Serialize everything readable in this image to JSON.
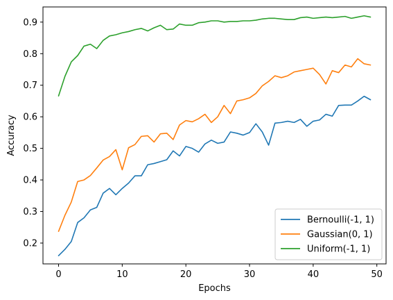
{
  "chart_data": {
    "type": "line",
    "title": "",
    "xlabel": "Epochs",
    "ylabel": "Accuracy",
    "xlim": [
      -2.45,
      51.45
    ],
    "ylim": [
      0.134,
      0.948
    ],
    "xticks": [
      0,
      10,
      20,
      30,
      40,
      50
    ],
    "yticks": [
      0.2,
      0.3,
      0.4,
      0.5,
      0.6,
      0.7,
      0.8,
      0.9
    ],
    "xtick_labels": [
      "0",
      "10",
      "20",
      "30",
      "40",
      "50"
    ],
    "ytick_labels": [
      "0.2",
      "0.3",
      "0.4",
      "0.5",
      "0.6",
      "0.7",
      "0.8",
      "0.9"
    ],
    "grid": false,
    "legend_position": "lower-right",
    "x": [
      0,
      1,
      2,
      3,
      4,
      5,
      6,
      7,
      8,
      9,
      10,
      11,
      12,
      13,
      14,
      15,
      16,
      17,
      18,
      19,
      20,
      21,
      22,
      23,
      24,
      25,
      26,
      27,
      28,
      29,
      30,
      31,
      32,
      33,
      34,
      35,
      36,
      37,
      38,
      39,
      40,
      41,
      42,
      43,
      44,
      45,
      46,
      47,
      48,
      49
    ],
    "series": [
      {
        "name": "Bernoulli(-1, 1)",
        "color": "#1f77b4",
        "values": [
          0.16,
          0.18,
          0.205,
          0.265,
          0.28,
          0.305,
          0.313,
          0.358,
          0.373,
          0.353,
          0.373,
          0.39,
          0.413,
          0.413,
          0.448,
          0.452,
          0.458,
          0.464,
          0.492,
          0.476,
          0.506,
          0.5,
          0.488,
          0.514,
          0.526,
          0.516,
          0.52,
          0.552,
          0.548,
          0.542,
          0.55,
          0.578,
          0.552,
          0.51,
          0.58,
          0.582,
          0.586,
          0.582,
          0.592,
          0.57,
          0.586,
          0.59,
          0.608,
          0.602,
          0.636,
          0.637,
          0.637,
          0.65,
          0.665,
          0.654
        ]
      },
      {
        "name": "Gaussian(0, 1)",
        "color": "#ff7f0e",
        "values": [
          0.237,
          0.288,
          0.33,
          0.395,
          0.4,
          0.414,
          0.438,
          0.463,
          0.474,
          0.496,
          0.432,
          0.502,
          0.512,
          0.538,
          0.54,
          0.52,
          0.546,
          0.548,
          0.528,
          0.574,
          0.588,
          0.584,
          0.594,
          0.608,
          0.582,
          0.6,
          0.636,
          0.61,
          0.65,
          0.654,
          0.66,
          0.674,
          0.698,
          0.712,
          0.73,
          0.724,
          0.73,
          0.742,
          0.746,
          0.75,
          0.754,
          0.734,
          0.704,
          0.746,
          0.74,
          0.764,
          0.758,
          0.784,
          0.768,
          0.764
        ]
      },
      {
        "name": "Uniform(-1, 1)",
        "color": "#2ca02c",
        "values": [
          0.666,
          0.728,
          0.774,
          0.794,
          0.824,
          0.83,
          0.816,
          0.842,
          0.856,
          0.86,
          0.866,
          0.87,
          0.876,
          0.88,
          0.872,
          0.882,
          0.89,
          0.876,
          0.878,
          0.894,
          0.89,
          0.89,
          0.898,
          0.9,
          0.904,
          0.904,
          0.9,
          0.902,
          0.902,
          0.904,
          0.904,
          0.906,
          0.91,
          0.912,
          0.912,
          0.91,
          0.908,
          0.908,
          0.914,
          0.916,
          0.912,
          0.914,
          0.916,
          0.914,
          0.916,
          0.918,
          0.912,
          0.916,
          0.92,
          0.916
        ]
      }
    ]
  }
}
